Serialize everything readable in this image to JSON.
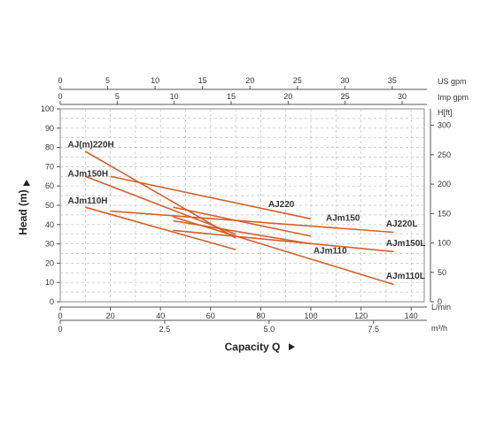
{
  "chart_data": {
    "type": "line",
    "xlabel": "Capacity Q",
    "ylabel": "Head (m)",
    "x_unit": "L/min",
    "xlim": [
      0,
      147
    ],
    "ylim": [
      0,
      100
    ],
    "x_ticks": [
      0,
      20,
      40,
      60,
      80,
      100,
      120,
      140
    ],
    "y_ticks": [
      0,
      10,
      20,
      30,
      40,
      50,
      60,
      70,
      80,
      90,
      100
    ],
    "grid": true,
    "secondary_axes": {
      "top_us_gpm": {
        "label": "US gpm",
        "ticks": [
          0,
          5,
          10,
          15,
          20,
          25,
          30,
          35
        ],
        "factor": 3.7854
      },
      "top_imp_gpm": {
        "label": "Imp gpm",
        "ticks": [
          0,
          5,
          10,
          15,
          20,
          25,
          30
        ],
        "factor": 4.546
      },
      "right_ft": {
        "label": "H[ft]",
        "ticks": [
          0,
          50,
          100,
          150,
          200,
          250,
          300
        ],
        "factor": 0.3048
      },
      "bottom_m3h": {
        "label": "m³/h",
        "ticks": [
          "0",
          "2.5",
          "5.0",
          "7.5"
        ],
        "factor": 16.667
      }
    },
    "curve_color": "#d2612a",
    "series": [
      {
        "name": "AJ(m)220H",
        "points": [
          [
            10,
            78
          ],
          [
            70,
            33
          ]
        ]
      },
      {
        "name": "AJm150H",
        "points": [
          [
            10,
            65
          ],
          [
            70,
            35
          ]
        ]
      },
      {
        "name": "AJm110H",
        "points": [
          [
            10,
            49
          ],
          [
            70,
            27
          ]
        ]
      },
      {
        "name": "AJ220",
        "points": [
          [
            20,
            65
          ],
          [
            100,
            43
          ]
        ]
      },
      {
        "name": "AJm150",
        "points": [
          [
            45,
            49
          ],
          [
            100,
            34
          ]
        ]
      },
      {
        "name": "AJm110",
        "points": [
          [
            45,
            42
          ],
          [
            100,
            30
          ]
        ]
      },
      {
        "name": "AJ220L",
        "points": [
          [
            20,
            47
          ],
          [
            133,
            36
          ]
        ]
      },
      {
        "name": "AJm150L",
        "points": [
          [
            45,
            37
          ],
          [
            133,
            26
          ]
        ]
      },
      {
        "name": "AJm110L",
        "points": [
          [
            45,
            44
          ],
          [
            133,
            9
          ]
        ]
      }
    ],
    "label_anchors": [
      {
        "name": "AJ(m)220H",
        "x": 3,
        "y": 80
      },
      {
        "name": "AJm150H",
        "x": 3,
        "y": 65
      },
      {
        "name": "AJm110H",
        "x": 3,
        "y": 51
      },
      {
        "name": "AJ220",
        "x": 83,
        "y": 49
      },
      {
        "name": "AJm150",
        "x": 106,
        "y": 42
      },
      {
        "name": "AJm110",
        "x": 101,
        "y": 25
      },
      {
        "name": "AJ220L",
        "x": 130,
        "y": 39
      },
      {
        "name": "AJm150L",
        "x": 130,
        "y": 29
      },
      {
        "name": "AJm110L",
        "x": 130,
        "y": 12
      }
    ]
  }
}
